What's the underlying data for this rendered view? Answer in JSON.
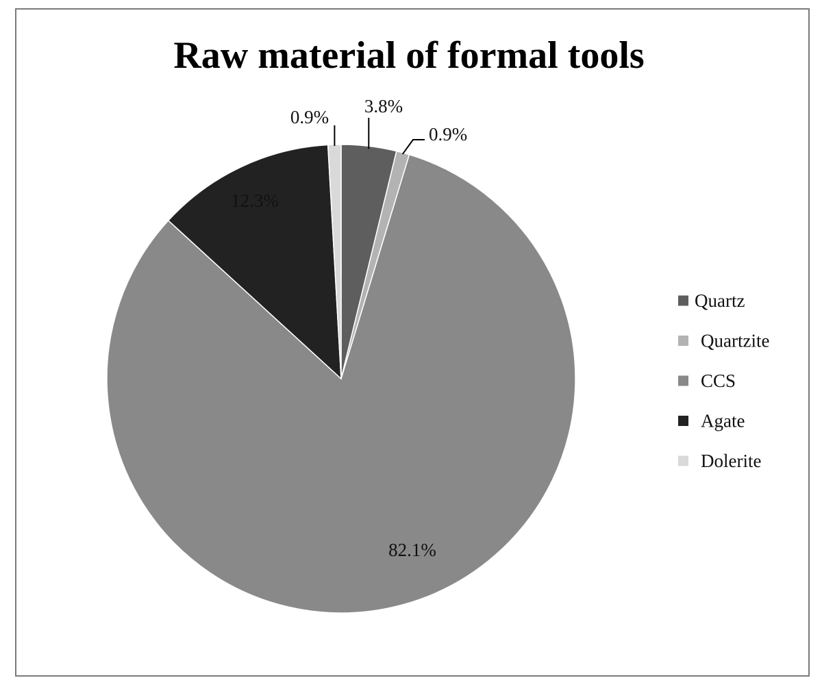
{
  "chart_data": {
    "type": "pie",
    "title": "Raw material of formal tools",
    "categories": [
      "Quartz",
      "Quartzite",
      "CCS",
      "Agate",
      "Dolerite"
    ],
    "values": [
      3.8,
      0.9,
      82.1,
      12.3,
      0.9
    ],
    "data_labels": [
      "3.8%",
      "0.9%",
      "82.1%",
      "12.3%",
      "0.9%"
    ],
    "colors": [
      "#5e5e5e",
      "#b3b3b3",
      "#898989",
      "#222222",
      "#d9d9d9"
    ],
    "start_angle": "12 o'clock",
    "direction": "clockwise",
    "legend": {
      "position": "right",
      "items": [
        {
          "label": "Quartz",
          "color": "#5e5e5e"
        },
        {
          "label": "Quartzite",
          "color": "#b3b3b3"
        },
        {
          "label": "CCS",
          "color": "#898989"
        },
        {
          "label": "Agate",
          "color": "#222222"
        },
        {
          "label": "Dolerite",
          "color": "#d9d9d9"
        }
      ]
    }
  }
}
